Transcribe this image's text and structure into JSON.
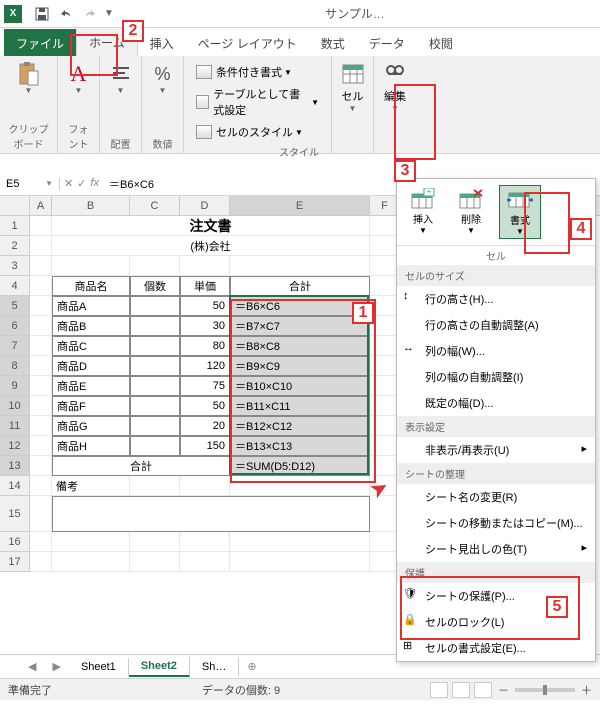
{
  "titlebar": {
    "app": "X",
    "title": "サンプル…"
  },
  "tabs": {
    "file": "ファイル",
    "home": "ホーム",
    "insert": "挿入",
    "layout": "ページ レイアウト",
    "formula": "数式",
    "data": "データ",
    "review": "校閲"
  },
  "ribbon": {
    "clipboard": "クリップボード",
    "font": "フォント",
    "align": "配置",
    "number": "数値",
    "cond_format": "条件付き書式",
    "table_format": "テーブルとして書式設定",
    "cell_style": "セルのスタイル",
    "style": "スタイル",
    "cell": "セル",
    "edit": "編集"
  },
  "namebox": "E5",
  "formula": "＝B6×C6",
  "cols": {
    "A": 22,
    "B": 78,
    "C": 50,
    "D": 50,
    "E": 140,
    "F": 30
  },
  "doc": {
    "title": "注文書",
    "company": "(株)会社",
    "headers": {
      "name": "商品名",
      "qty": "個数",
      "price": "単価",
      "total": "合計"
    },
    "rows": [
      {
        "name": "商品A",
        "price": "50",
        "formula": "＝B6×C6"
      },
      {
        "name": "商品B",
        "price": "30",
        "formula": "＝B7×C7"
      },
      {
        "name": "商品C",
        "price": "80",
        "formula": "＝B8×C8"
      },
      {
        "name": "商品D",
        "price": "120",
        "formula": "＝B9×C9"
      },
      {
        "name": "商品E",
        "price": "75",
        "formula": "＝B10×C10"
      },
      {
        "name": "商品F",
        "price": "50",
        "formula": "＝B11×C11"
      },
      {
        "name": "商品G",
        "price": "20",
        "formula": "＝B12×C12"
      },
      {
        "name": "商品H",
        "price": "150",
        "formula": "＝B13×C13"
      }
    ],
    "total_label": "合計",
    "sum_formula": "＝SUM(D5:D12)",
    "note_label": "備考"
  },
  "menu": {
    "insert": "挿入",
    "delete": "削除",
    "format": "書式",
    "cell": "セル",
    "size_section": "セルのサイズ",
    "row_height": "行の高さ(H)...",
    "auto_row": "行の高さの自動調整(A)",
    "col_width": "列の幅(W)...",
    "auto_col": "列の幅の自動調整(I)",
    "default_width": "既定の幅(D)...",
    "visibility_section": "表示設定",
    "hide": "非表示/再表示(U)",
    "organize_section": "シートの整理",
    "rename": "シート名の変更(R)",
    "move_copy": "シートの移動またはコピー(M)...",
    "tab_color": "シート見出しの色(T)",
    "protect_section": "保護",
    "protect_sheet": "シートの保護(P)...",
    "lock_cell": "セルのロック(L)",
    "format_cells": "セルの書式設定(E)..."
  },
  "sheets": {
    "s1": "Sheet1",
    "s2": "Sheet2",
    "s3": "Sh…"
  },
  "status": {
    "ready": "準備完了",
    "count": "データの個数: 9",
    "zoom_minus": "－",
    "zoom_plus": "＋"
  },
  "callouts": {
    "c1": "1",
    "c2": "2",
    "c3": "3",
    "c4": "4",
    "c5": "5"
  }
}
